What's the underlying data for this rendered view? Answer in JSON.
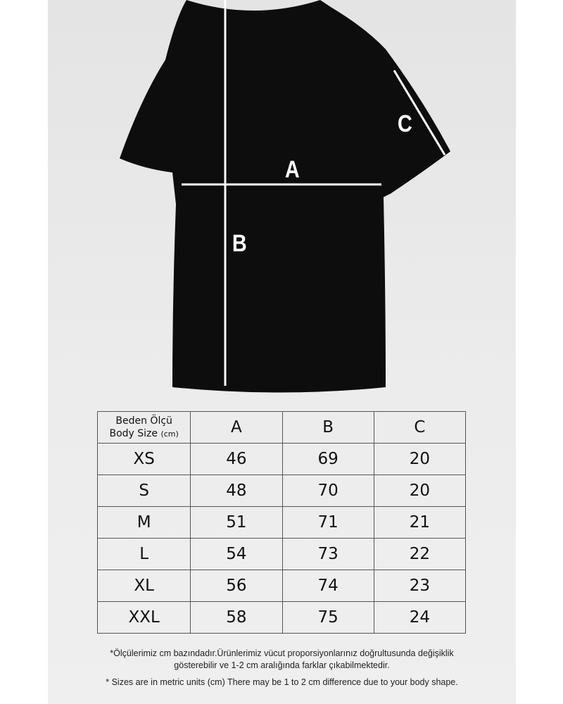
{
  "labels": {
    "a": "A",
    "b": "B",
    "c": "C"
  },
  "table": {
    "header": {
      "line1": "Beden Ölçü",
      "line2": "Body Size",
      "unit": "(cm)",
      "columns": [
        "A",
        "B",
        "C"
      ]
    },
    "rows": [
      {
        "size": "XS",
        "a": "46",
        "b": "69",
        "c": "20"
      },
      {
        "size": "S",
        "a": "48",
        "b": "70",
        "c": "20"
      },
      {
        "size": "M",
        "a": "51",
        "b": "71",
        "c": "21"
      },
      {
        "size": "L",
        "a": "54",
        "b": "73",
        "c": "22"
      },
      {
        "size": "XL",
        "a": "56",
        "b": "74",
        "c": "23"
      },
      {
        "size": "XXL",
        "a": "58",
        "b": "75",
        "c": "24"
      }
    ]
  },
  "notes": {
    "tr_line1": "*Ölçülerimiz cm bazındadır.Ürünlerimiz vücut proporsiyonlarınız doğrultusunda değişiklik",
    "tr_line2": "gösterebilir ve 1-2 cm aralığında farklar çıkabilmektedir.",
    "en": "* Sizes are in metric units (cm) There may be 1 to 2 cm difference due to your body shape."
  },
  "colors": {
    "shirt": "#0d0d0d",
    "panel": "#e8e8e8",
    "lines": "#ffffff"
  }
}
